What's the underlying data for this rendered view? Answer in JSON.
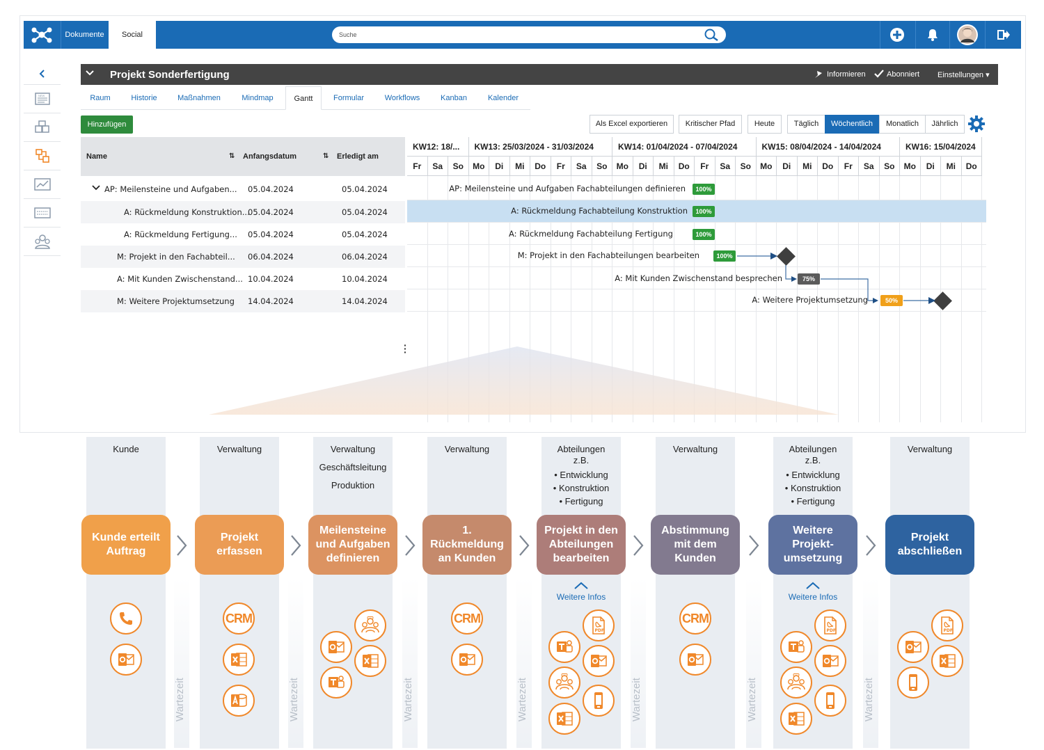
{
  "topbar": {
    "nav_documents": "Dokumente",
    "nav_social": "Social",
    "search_placeholder": "Suche",
    "icons": [
      "add-icon",
      "bell-icon",
      "avatar",
      "logout-icon"
    ]
  },
  "project": {
    "title": "Projekt Sonderfertigung",
    "actions": {
      "inform": "Informieren",
      "subscribed": "Abonniert",
      "settings": "Einstellungen"
    }
  },
  "tabs": [
    {
      "label": "Raum"
    },
    {
      "label": "Historie"
    },
    {
      "label": "Maßnahmen"
    },
    {
      "label": "Mindmap"
    },
    {
      "label": "Gantt",
      "active": true
    },
    {
      "label": "Formular"
    },
    {
      "label": "Workflows"
    },
    {
      "label": "Kanban"
    },
    {
      "label": "Kalender"
    }
  ],
  "toolbar": {
    "add": "Hinzufügen",
    "export": "Als Excel exportieren",
    "critical_path": "Kritischer Pfad",
    "today": "Heute",
    "views": [
      {
        "label": "Täglich"
      },
      {
        "label": "Wöchentlich",
        "active": true
      },
      {
        "label": "Monatlich"
      },
      {
        "label": "Jährlich"
      }
    ]
  },
  "grid": {
    "columns": [
      "Name",
      "Anfangsdatum",
      "Erledigt am"
    ],
    "rows": [
      {
        "name": "AP: Meilensteine und Aufgaben...",
        "start": "05.04.2024",
        "done": "05.04.2024",
        "expanded": true
      },
      {
        "name": "A: Rückmeldung Konstruktion...",
        "start": "05.04.2024",
        "done": "05.04.2024"
      },
      {
        "name": "A: Rückmeldung Fertigung...",
        "start": "05.04.2024",
        "done": "05.04.2024"
      },
      {
        "name": "M: Projekt in den Fachabteil...",
        "start": "06.04.2024",
        "done": "06.04.2024"
      },
      {
        "name": "A: Mit Kunden Zwischenstand...",
        "start": "10.04.2024",
        "done": "10.04.2024"
      },
      {
        "name": "M: Weitere Projektumsetzung",
        "start": "14.04.2024",
        "done": "14.04.2024"
      }
    ]
  },
  "gantt": {
    "weeks": [
      "KW12: 18/...",
      "KW13: 25/03/2024 - 31/03/2024",
      "KW14: 01/04/2024 - 07/04/2024",
      "KW15: 08/04/2024 - 14/04/2024",
      "KW16: 15/04/2024"
    ],
    "days": [
      "Fr",
      "Sa",
      "So",
      "Mo",
      "Di",
      "Mi",
      "Do",
      "Fr",
      "Sa",
      "So",
      "Mo",
      "Di",
      "Mi",
      "Do",
      "Fr",
      "Sa",
      "So",
      "Mo",
      "Di",
      "Mi",
      "Do",
      "Fr",
      "Sa",
      "So",
      "Mo",
      "Di",
      "Mi",
      "Do"
    ],
    "tasks": [
      {
        "label": "AP: Meilensteine und Aufgaben Fachabteilungen definieren",
        "progress": "100%"
      },
      {
        "label": "A: Rückmeldung Fachabteilung Konstruktion",
        "progress": "100%"
      },
      {
        "label": "A: Rückmeldung Fachabteilung Fertigung",
        "progress": "100%"
      },
      {
        "label": "M: Projekt in den Fachabteilungen bearbeiten",
        "progress": "100%"
      },
      {
        "label": "A: Mit Kunden Zwischenstand besprechen",
        "progress": "75%"
      },
      {
        "label": "A: Weitere Projektumsetzung",
        "progress": "50%"
      }
    ]
  },
  "process": {
    "wait_label": "Wartezeit",
    "more_label": "Weitere Infos",
    "lanes": [
      {
        "head": [
          "Kunde"
        ],
        "step": "Kunde erteilt Auftrag",
        "color": "#f0a04a"
      },
      {
        "head": [
          "Verwaltung"
        ],
        "step": "Projekt erfassen",
        "color": "#eb9c55"
      },
      {
        "head": [
          "Verwaltung",
          "Geschäftsleitung",
          "Produktion"
        ],
        "step": "Meilensteine und Aufgaben definieren",
        "color": "#dc9361"
      },
      {
        "head": [
          "Verwaltung"
        ],
        "step": "1. Rückmeldung an Kunden",
        "color": "#c58a6c"
      },
      {
        "head": [
          "Abteilungen",
          "z.B.",
          "• Entwicklung",
          "• Konstruktion",
          "• Fertigung"
        ],
        "step": "Projekt in den Abteilungen bearbeiten",
        "color": "#ad7d79"
      },
      {
        "head": [
          "Verwaltung"
        ],
        "step": "Abstimmung mit dem Kunden",
        "color": "#827a8f"
      },
      {
        "head": [
          "Abteilungen",
          "z.B.",
          "• Entwicklung",
          "• Konstruktion",
          "• Fertigung"
        ],
        "step": "Weitere Projekt-umsetzung",
        "color": "#5e72a0"
      },
      {
        "head": [
          "Verwaltung"
        ],
        "step": "Projekt abschließen",
        "color": "#2e63a0"
      }
    ],
    "crm_label": "CRM"
  }
}
